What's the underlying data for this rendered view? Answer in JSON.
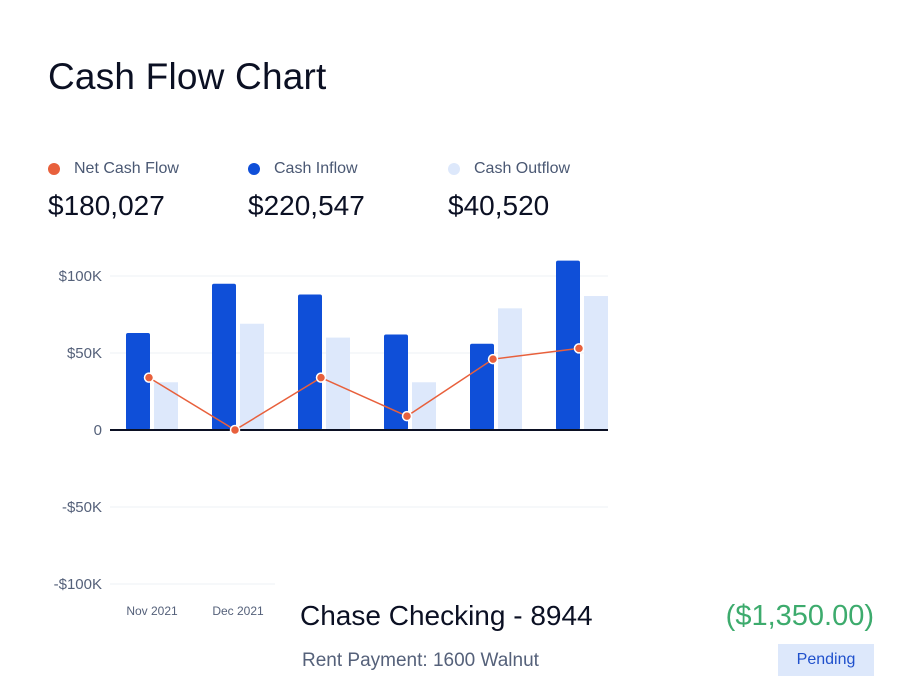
{
  "title": "Cash Flow Chart",
  "legend": [
    {
      "label": "Net Cash Flow",
      "value": "$180,027",
      "color": "#e8603c"
    },
    {
      "label": "Cash Inflow",
      "value": "$220,547",
      "color": "#0f4fd8"
    },
    {
      "label": "Cash Outflow",
      "value": "$40,520",
      "color": "#dde8fb"
    }
  ],
  "chart_data": {
    "type": "bar",
    "categories": [
      "Nov 2021",
      "Dec 2021",
      "",
      "",
      "",
      ""
    ],
    "series": [
      {
        "name": "Cash Inflow",
        "type": "bar",
        "color": "#0f4fd8",
        "values": [
          63000,
          95000,
          88000,
          62000,
          56000,
          110000
        ]
      },
      {
        "name": "Cash Outflow",
        "type": "bar",
        "color": "#dde8fb",
        "values": [
          31000,
          69000,
          60000,
          31000,
          79000,
          87000
        ]
      },
      {
        "name": "Net Cash Flow",
        "type": "line",
        "color": "#e8603c",
        "values": [
          34000,
          0,
          34000,
          9000,
          46000,
          53000
        ]
      }
    ],
    "yticks": [
      "$100K",
      "$50K",
      "0",
      "-$50K",
      "-$100K"
    ],
    "ylim": [
      -100000,
      100000
    ],
    "grid": true
  },
  "transaction": {
    "account": "Chase Checking - 8944",
    "amount": "($1,350.00)",
    "description": "Rent Payment: 1600 Walnut",
    "status": "Pending"
  }
}
